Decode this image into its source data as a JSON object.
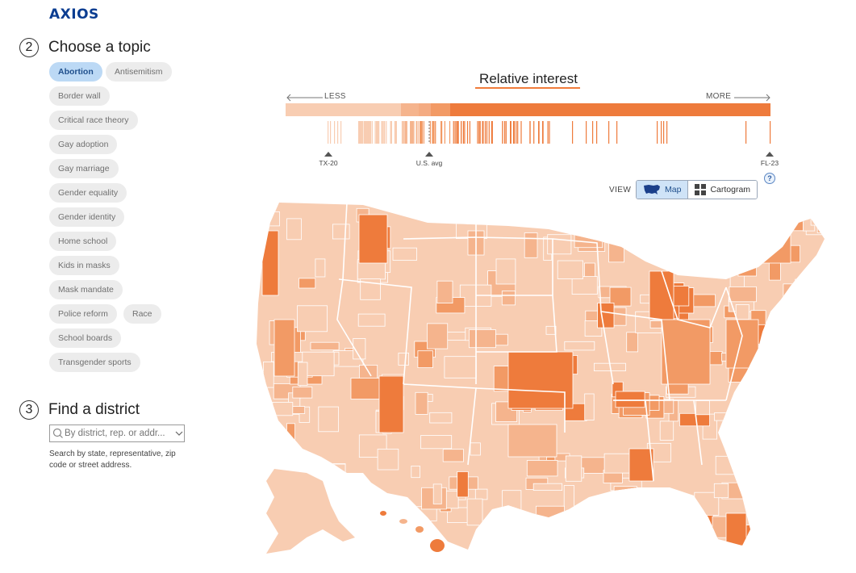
{
  "brand": {
    "logo": "AXIOS"
  },
  "steps": {
    "topic": {
      "number": "2",
      "title": "Choose a topic"
    },
    "district": {
      "number": "3",
      "title": "Find a district"
    }
  },
  "topics": [
    {
      "label": "Abortion",
      "selected": true
    },
    {
      "label": "Antisemitism",
      "selected": false
    },
    {
      "label": "Border wall",
      "selected": false
    },
    {
      "label": "Critical race theory",
      "selected": false
    },
    {
      "label": "Gay adoption",
      "selected": false
    },
    {
      "label": "Gay marriage",
      "selected": false
    },
    {
      "label": "Gender equality",
      "selected": false
    },
    {
      "label": "Gender identity",
      "selected": false
    },
    {
      "label": "Home school",
      "selected": false
    },
    {
      "label": "Kids in masks",
      "selected": false
    },
    {
      "label": "Mask mandate",
      "selected": false
    },
    {
      "label": "Police reform",
      "selected": false
    },
    {
      "label": "Race",
      "selected": false
    },
    {
      "label": "School boards",
      "selected": false
    },
    {
      "label": "Transgender sports",
      "selected": false
    }
  ],
  "search": {
    "placeholder": "By district, rep. or addr...",
    "help": "Search by state, representative, zip code or street address."
  },
  "legend": {
    "title": "Relative interest",
    "less": "LESS",
    "more": "MORE",
    "markers": [
      {
        "label": "TX-20"
      },
      {
        "label": "U.S. avg"
      },
      {
        "label": "FL-23"
      }
    ]
  },
  "view": {
    "label": "VIEW",
    "options": [
      {
        "label": "Map",
        "active": true,
        "icon": "us-map-icon"
      },
      {
        "label": "Cartogram",
        "active": false,
        "icon": "grid-icon"
      }
    ],
    "help": "?"
  },
  "colors": {
    "accent": "#f07b3a",
    "scale": [
      "#f8cdb2",
      "#f5b48d",
      "#f29a65",
      "#ee7b3c"
    ],
    "selected_chip": "#bcd9f5"
  }
}
